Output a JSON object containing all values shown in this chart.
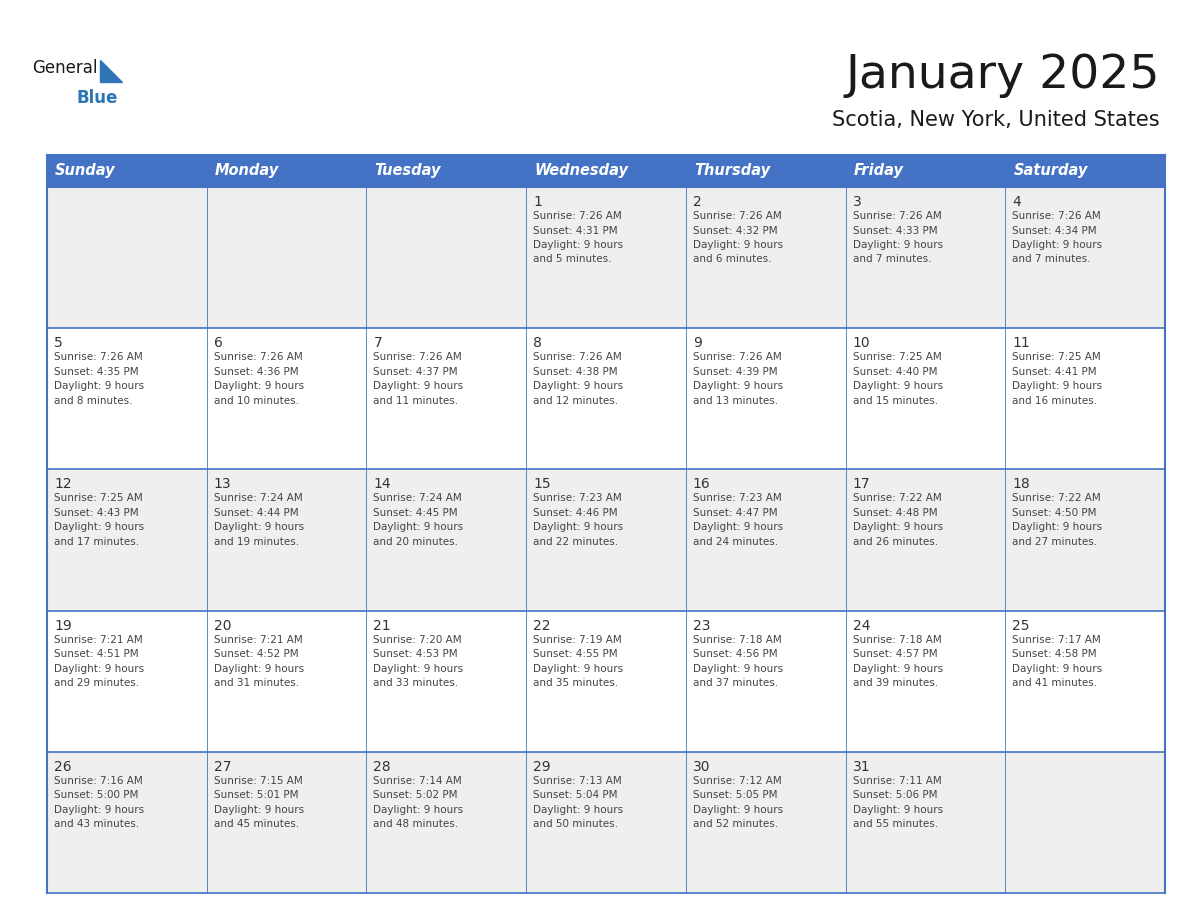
{
  "title": "January 2025",
  "subtitle": "Scotia, New York, United States",
  "header_bg_color": "#4472C4",
  "header_text_color": "#FFFFFF",
  "header_font_size": 10.5,
  "day_names": [
    "Sunday",
    "Monday",
    "Tuesday",
    "Wednesday",
    "Thursday",
    "Friday",
    "Saturday"
  ],
  "title_font_size": 34,
  "subtitle_font_size": 15,
  "cell_text_color": "#444444",
  "cell_number_color": "#333333",
  "grid_color": "#4472C4",
  "row0_bg": "#EFEFEF",
  "row1_bg": "#FFFFFF",
  "row2_bg": "#EFEFEF",
  "row3_bg": "#FFFFFF",
  "row4_bg": "#EFEFEF",
  "logo_color": "#2E75B6",
  "logo_black": "#1a1a1a",
  "days": [
    {
      "day": 1,
      "col": 3,
      "row": 0,
      "sunrise": "7:26 AM",
      "sunset": "4:31 PM",
      "daylight": "9 hours and 5 minutes."
    },
    {
      "day": 2,
      "col": 4,
      "row": 0,
      "sunrise": "7:26 AM",
      "sunset": "4:32 PM",
      "daylight": "9 hours and 6 minutes."
    },
    {
      "day": 3,
      "col": 5,
      "row": 0,
      "sunrise": "7:26 AM",
      "sunset": "4:33 PM",
      "daylight": "9 hours and 7 minutes."
    },
    {
      "day": 4,
      "col": 6,
      "row": 0,
      "sunrise": "7:26 AM",
      "sunset": "4:34 PM",
      "daylight": "9 hours and 7 minutes."
    },
    {
      "day": 5,
      "col": 0,
      "row": 1,
      "sunrise": "7:26 AM",
      "sunset": "4:35 PM",
      "daylight": "9 hours and 8 minutes."
    },
    {
      "day": 6,
      "col": 1,
      "row": 1,
      "sunrise": "7:26 AM",
      "sunset": "4:36 PM",
      "daylight": "9 hours and 10 minutes."
    },
    {
      "day": 7,
      "col": 2,
      "row": 1,
      "sunrise": "7:26 AM",
      "sunset": "4:37 PM",
      "daylight": "9 hours and 11 minutes."
    },
    {
      "day": 8,
      "col": 3,
      "row": 1,
      "sunrise": "7:26 AM",
      "sunset": "4:38 PM",
      "daylight": "9 hours and 12 minutes."
    },
    {
      "day": 9,
      "col": 4,
      "row": 1,
      "sunrise": "7:26 AM",
      "sunset": "4:39 PM",
      "daylight": "9 hours and 13 minutes."
    },
    {
      "day": 10,
      "col": 5,
      "row": 1,
      "sunrise": "7:25 AM",
      "sunset": "4:40 PM",
      "daylight": "9 hours and 15 minutes."
    },
    {
      "day": 11,
      "col": 6,
      "row": 1,
      "sunrise": "7:25 AM",
      "sunset": "4:41 PM",
      "daylight": "9 hours and 16 minutes."
    },
    {
      "day": 12,
      "col": 0,
      "row": 2,
      "sunrise": "7:25 AM",
      "sunset": "4:43 PM",
      "daylight": "9 hours and 17 minutes."
    },
    {
      "day": 13,
      "col": 1,
      "row": 2,
      "sunrise": "7:24 AM",
      "sunset": "4:44 PM",
      "daylight": "9 hours and 19 minutes."
    },
    {
      "day": 14,
      "col": 2,
      "row": 2,
      "sunrise": "7:24 AM",
      "sunset": "4:45 PM",
      "daylight": "9 hours and 20 minutes."
    },
    {
      "day": 15,
      "col": 3,
      "row": 2,
      "sunrise": "7:23 AM",
      "sunset": "4:46 PM",
      "daylight": "9 hours and 22 minutes."
    },
    {
      "day": 16,
      "col": 4,
      "row": 2,
      "sunrise": "7:23 AM",
      "sunset": "4:47 PM",
      "daylight": "9 hours and 24 minutes."
    },
    {
      "day": 17,
      "col": 5,
      "row": 2,
      "sunrise": "7:22 AM",
      "sunset": "4:48 PM",
      "daylight": "9 hours and 26 minutes."
    },
    {
      "day": 18,
      "col": 6,
      "row": 2,
      "sunrise": "7:22 AM",
      "sunset": "4:50 PM",
      "daylight": "9 hours and 27 minutes."
    },
    {
      "day": 19,
      "col": 0,
      "row": 3,
      "sunrise": "7:21 AM",
      "sunset": "4:51 PM",
      "daylight": "9 hours and 29 minutes."
    },
    {
      "day": 20,
      "col": 1,
      "row": 3,
      "sunrise": "7:21 AM",
      "sunset": "4:52 PM",
      "daylight": "9 hours and 31 minutes."
    },
    {
      "day": 21,
      "col": 2,
      "row": 3,
      "sunrise": "7:20 AM",
      "sunset": "4:53 PM",
      "daylight": "9 hours and 33 minutes."
    },
    {
      "day": 22,
      "col": 3,
      "row": 3,
      "sunrise": "7:19 AM",
      "sunset": "4:55 PM",
      "daylight": "9 hours and 35 minutes."
    },
    {
      "day": 23,
      "col": 4,
      "row": 3,
      "sunrise": "7:18 AM",
      "sunset": "4:56 PM",
      "daylight": "9 hours and 37 minutes."
    },
    {
      "day": 24,
      "col": 5,
      "row": 3,
      "sunrise": "7:18 AM",
      "sunset": "4:57 PM",
      "daylight": "9 hours and 39 minutes."
    },
    {
      "day": 25,
      "col": 6,
      "row": 3,
      "sunrise": "7:17 AM",
      "sunset": "4:58 PM",
      "daylight": "9 hours and 41 minutes."
    },
    {
      "day": 26,
      "col": 0,
      "row": 4,
      "sunrise": "7:16 AM",
      "sunset": "5:00 PM",
      "daylight": "9 hours and 43 minutes."
    },
    {
      "day": 27,
      "col": 1,
      "row": 4,
      "sunrise": "7:15 AM",
      "sunset": "5:01 PM",
      "daylight": "9 hours and 45 minutes."
    },
    {
      "day": 28,
      "col": 2,
      "row": 4,
      "sunrise": "7:14 AM",
      "sunset": "5:02 PM",
      "daylight": "9 hours and 48 minutes."
    },
    {
      "day": 29,
      "col": 3,
      "row": 4,
      "sunrise": "7:13 AM",
      "sunset": "5:04 PM",
      "daylight": "9 hours and 50 minutes."
    },
    {
      "day": 30,
      "col": 4,
      "row": 4,
      "sunrise": "7:12 AM",
      "sunset": "5:05 PM",
      "daylight": "9 hours and 52 minutes."
    },
    {
      "day": 31,
      "col": 5,
      "row": 4,
      "sunrise": "7:11 AM",
      "sunset": "5:06 PM",
      "daylight": "9 hours and 55 minutes."
    }
  ]
}
